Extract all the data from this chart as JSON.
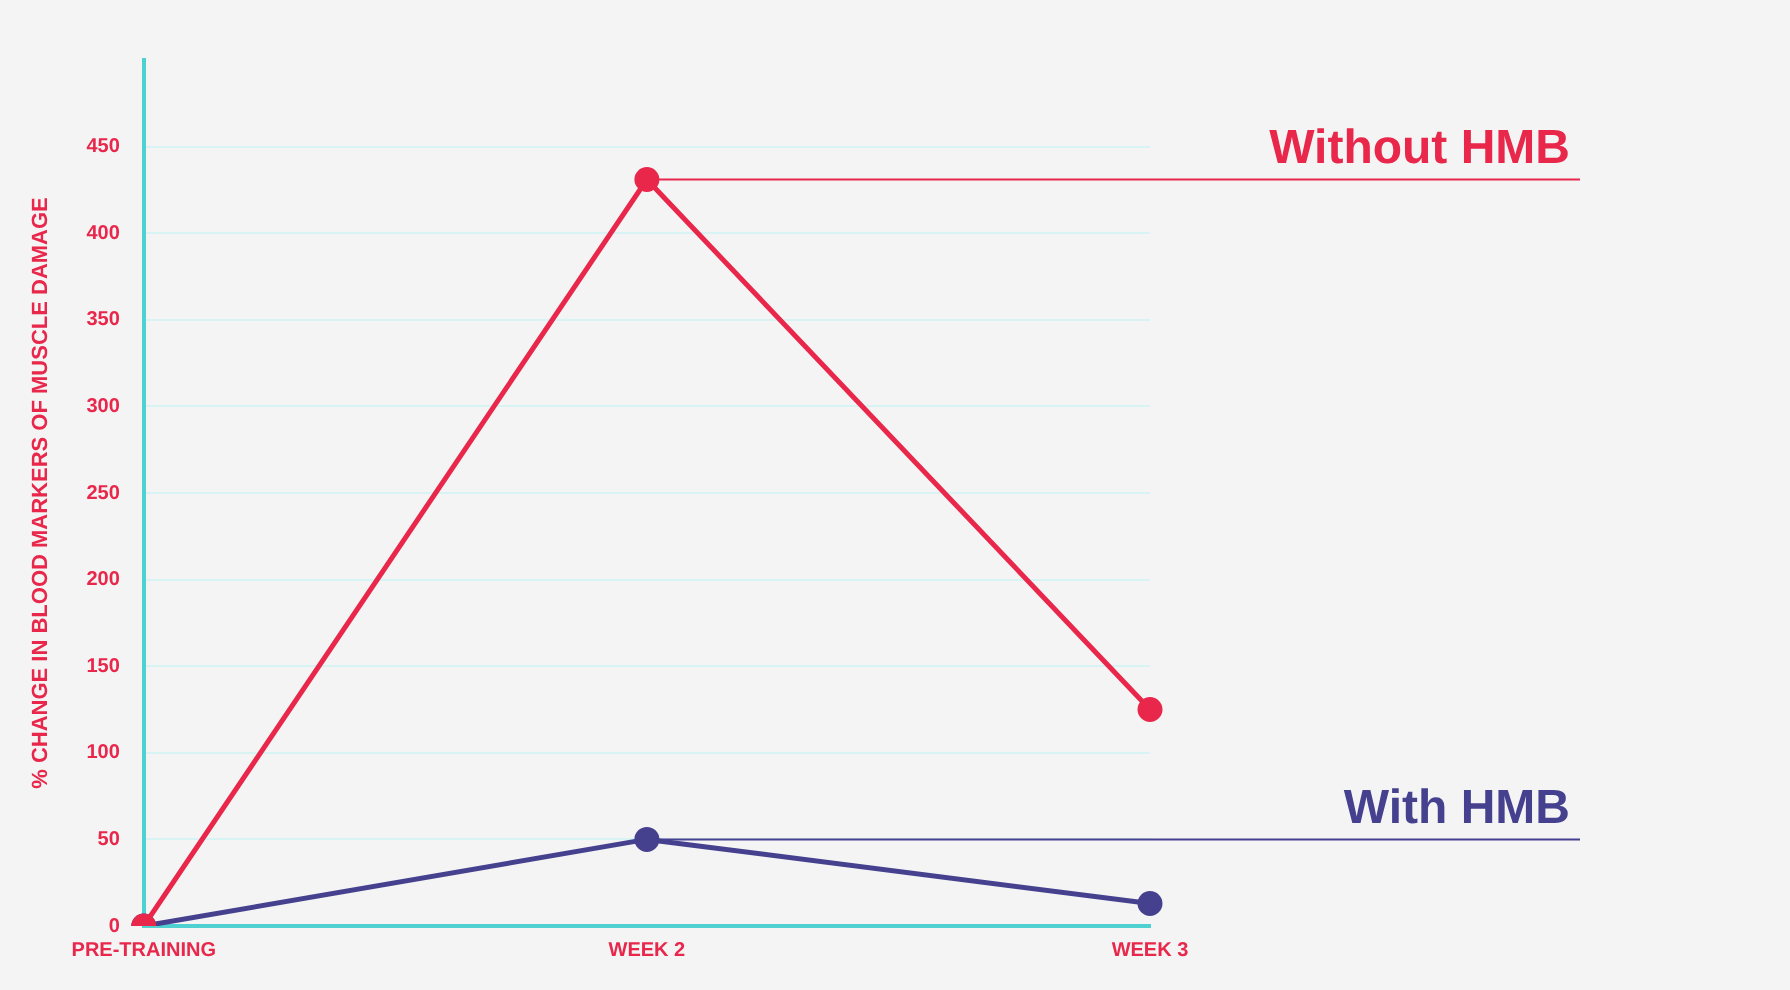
{
  "chart_data": {
    "type": "line",
    "ylabel": "% CHANGE IN BLOOD MARKERS OF MUSCLE DAMAGE",
    "categories": [
      "PRE-TRAINING",
      "WEEK 2",
      "WEEK 3"
    ],
    "series": [
      {
        "name": "Without HMB",
        "color": "#e8274b",
        "values": [
          0,
          431,
          125
        ]
      },
      {
        "name": "With HMB",
        "color": "#45418f",
        "values": [
          0,
          50,
          13
        ]
      }
    ],
    "ylim": [
      0,
      500
    ],
    "yticks": [
      0,
      50,
      100,
      150,
      200,
      250,
      300,
      350,
      400,
      450
    ],
    "grid": "y",
    "legend": false,
    "marker": "circle",
    "line_style": "solid"
  }
}
